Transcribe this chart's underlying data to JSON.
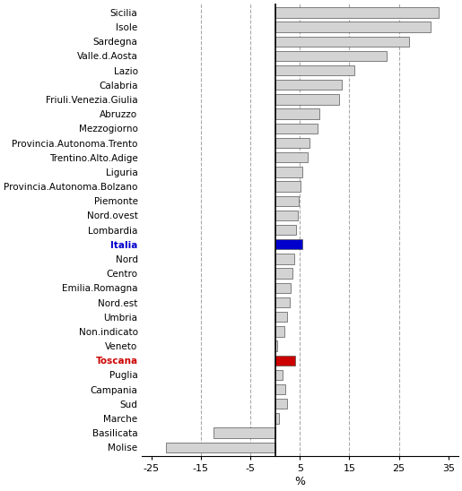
{
  "categories": [
    "Sicilia",
    "Isole",
    "Sardegna",
    "Valle.d.Aosta",
    "Lazio",
    "Calabria",
    "Friuli.Venezia.Giulia",
    "Abruzzo",
    "Mezzogiorno",
    "Provincia.Autonoma.Trento",
    "Trentino.Alto.Adige",
    "Liguria",
    "Provincia.Autonoma.Bolzano",
    "Piemonte",
    "Nord.ovest",
    "Lombardia",
    "Italia",
    "Nord",
    "Centro",
    "Emilia.Romagna",
    "Nord.est",
    "Umbria",
    "Non.indicato",
    "Veneto",
    "Toscana",
    "Puglia",
    "Campania",
    "Sud",
    "Marche",
    "Basilicata",
    "Molise"
  ],
  "values": [
    33.0,
    31.5,
    27.0,
    22.5,
    16.0,
    13.5,
    13.0,
    9.0,
    8.5,
    7.0,
    6.5,
    5.5,
    5.2,
    4.8,
    4.5,
    4.2,
    5.5,
    3.8,
    3.5,
    3.2,
    3.0,
    2.5,
    1.8,
    0.5,
    4.0,
    1.5,
    2.0,
    2.5,
    0.8,
    -12.5,
    -22.0
  ],
  "colors": [
    "#d3d3d3",
    "#d3d3d3",
    "#d3d3d3",
    "#d3d3d3",
    "#d3d3d3",
    "#d3d3d3",
    "#d3d3d3",
    "#d3d3d3",
    "#d3d3d3",
    "#d3d3d3",
    "#d3d3d3",
    "#d3d3d3",
    "#d3d3d3",
    "#d3d3d3",
    "#d3d3d3",
    "#d3d3d3",
    "#0000cc",
    "#d3d3d3",
    "#d3d3d3",
    "#d3d3d3",
    "#d3d3d3",
    "#d3d3d3",
    "#d3d3d3",
    "#d3d3d3",
    "#cc0000",
    "#d3d3d3",
    "#d3d3d3",
    "#d3d3d3",
    "#d3d3d3",
    "#d3d3d3",
    "#d3d3d3"
  ],
  "label_colors": [
    "black",
    "black",
    "black",
    "black",
    "black",
    "black",
    "black",
    "black",
    "black",
    "black",
    "black",
    "black",
    "black",
    "black",
    "black",
    "black",
    "#0000cc",
    "black",
    "black",
    "black",
    "black",
    "black",
    "black",
    "black",
    "#cc0000",
    "black",
    "black",
    "black",
    "black",
    "black",
    "black"
  ],
  "label_bold": [
    false,
    false,
    false,
    false,
    false,
    false,
    false,
    false,
    false,
    false,
    false,
    false,
    false,
    false,
    false,
    false,
    true,
    false,
    false,
    false,
    false,
    false,
    false,
    false,
    true,
    false,
    false,
    false,
    false,
    false,
    false
  ],
  "xlabel": "%",
  "xlim": [
    -27,
    37
  ],
  "xticks": [
    -25,
    -15,
    -5,
    5,
    15,
    25,
    35
  ],
  "background_color": "#ffffff",
  "bar_edge_color": "#555555",
  "grid_color": "#aaaaaa",
  "grid_x": [
    -15,
    -5,
    5,
    15,
    25
  ]
}
